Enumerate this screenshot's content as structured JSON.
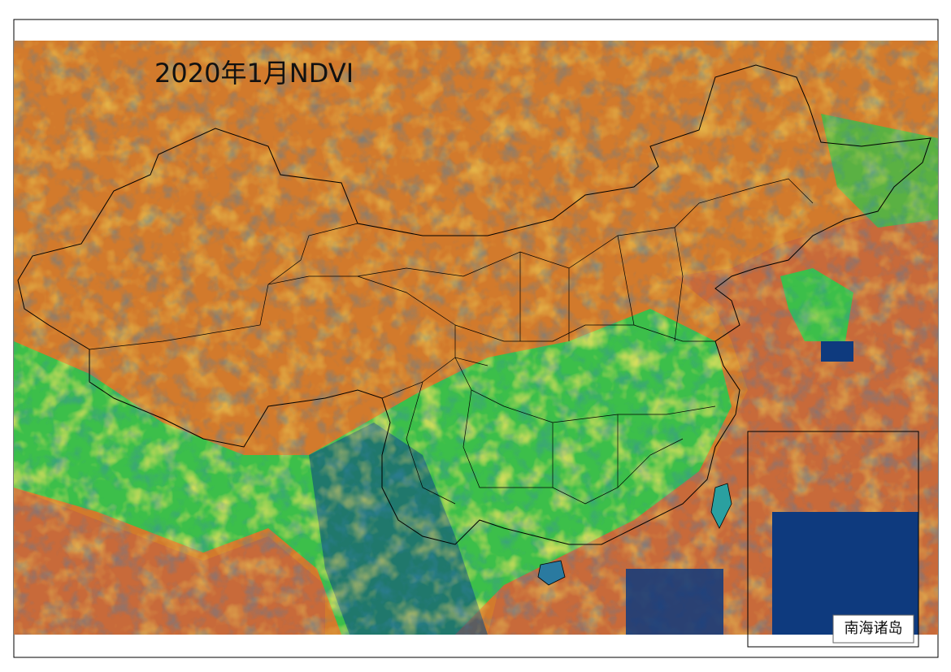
{
  "title": "2020年1月NDVI",
  "inset": {
    "label": "南海诸岛"
  }
}
